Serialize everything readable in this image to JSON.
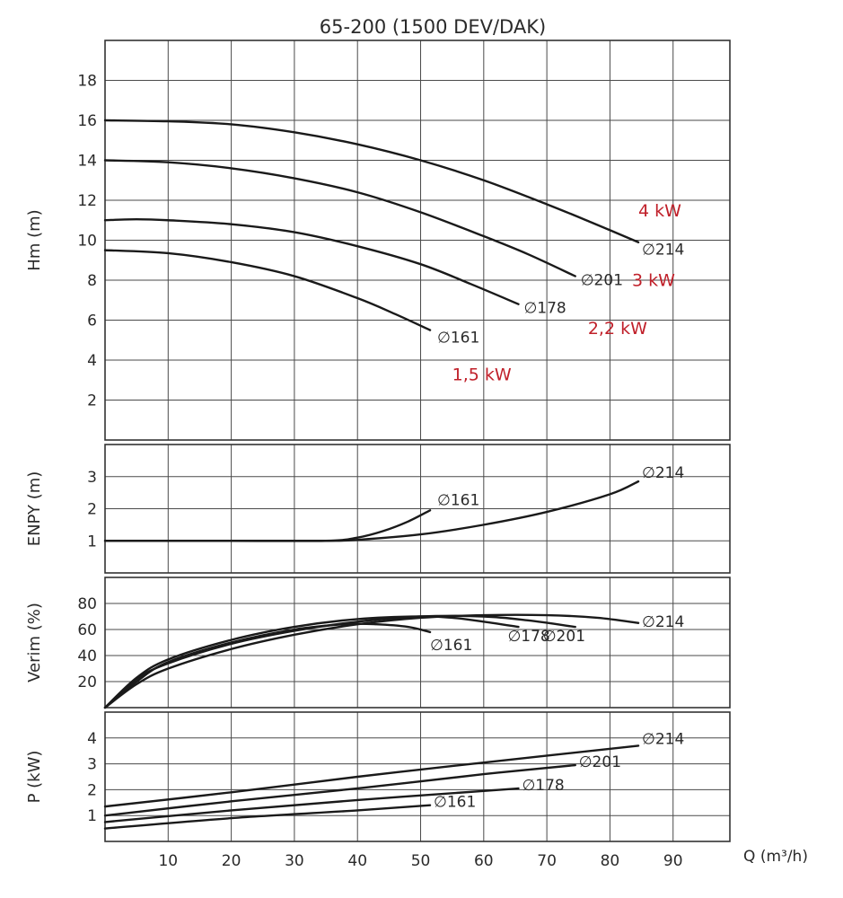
{
  "title": "65-200 (1500 DEV/DAK)",
  "xlabel": "Q (m³/h)",
  "diameter_symbol": "∅",
  "colors": {
    "curve": "#1a1a1a",
    "grid": "#4a4a4a",
    "power_label": "#c0202a"
  },
  "chart_data": [
    {
      "type": "line",
      "ylabel": "Hm (m)",
      "xlim": [
        0,
        99
      ],
      "ylim": [
        0,
        20
      ],
      "xticks": [
        10,
        20,
        30,
        40,
        50,
        60,
        70,
        80,
        90
      ],
      "yticks": [
        2,
        4,
        6,
        8,
        10,
        12,
        14,
        16,
        18
      ],
      "grid": true,
      "series": [
        {
          "name": "214",
          "x": [
            0,
            10,
            20,
            30,
            40,
            50,
            60,
            70,
            77,
            84.5
          ],
          "y": [
            16,
            15.95,
            15.8,
            15.4,
            14.8,
            14,
            13,
            11.8,
            10.9,
            9.9
          ]
        },
        {
          "name": "201",
          "x": [
            0,
            10,
            20,
            30,
            40,
            50,
            60,
            67,
            74.5
          ],
          "y": [
            14,
            13.9,
            13.6,
            13.1,
            12.4,
            11.4,
            10.2,
            9.3,
            8.2
          ]
        },
        {
          "name": "178",
          "x": [
            0,
            5,
            10,
            20,
            30,
            40,
            50,
            58,
            65.5
          ],
          "y": [
            11,
            11.05,
            11,
            10.8,
            10.4,
            9.7,
            8.8,
            7.8,
            6.8
          ]
        },
        {
          "name": "161",
          "x": [
            0,
            10,
            20,
            30,
            40,
            46,
            51.5
          ],
          "y": [
            9.5,
            9.35,
            8.9,
            8.2,
            7.1,
            6.3,
            5.5
          ]
        }
      ],
      "annotations": [
        "4 kW",
        "3 kW",
        "2,2 kW",
        "1,5 kW"
      ]
    },
    {
      "type": "line",
      "ylabel": "ENPY (m)",
      "xlim": [
        0,
        99
      ],
      "ylim": [
        0,
        4
      ],
      "yticks": [
        1,
        2,
        3
      ],
      "grid": true,
      "series": [
        {
          "name": "214",
          "x": [
            0,
            20,
            35,
            40,
            50,
            60,
            70,
            80,
            84.5
          ],
          "y": [
            1,
            1,
            1,
            1.03,
            1.2,
            1.5,
            1.9,
            2.45,
            2.85
          ]
        },
        {
          "name": "161",
          "x": [
            0,
            20,
            35,
            40,
            44,
            48,
            51.5
          ],
          "y": [
            1,
            1,
            1,
            1.1,
            1.3,
            1.6,
            1.95
          ]
        }
      ]
    },
    {
      "type": "line",
      "ylabel": "Verim (%)",
      "xlim": [
        0,
        99
      ],
      "ylim": [
        0,
        100
      ],
      "yticks": [
        20,
        40,
        60,
        80
      ],
      "grid": true,
      "series": [
        {
          "name": "161",
          "x": [
            0,
            5,
            10,
            20,
            30,
            38,
            43,
            48,
            51.5
          ],
          "y": [
            0,
            20,
            35,
            50,
            60,
            64,
            64,
            62,
            58
          ]
        },
        {
          "name": "178",
          "x": [
            0,
            5,
            10,
            20,
            30,
            40,
            50,
            55,
            60,
            65.5
          ],
          "y": [
            0,
            23,
            37,
            52,
            62,
            68,
            70,
            69,
            66,
            62
          ]
        },
        {
          "name": "201",
          "x": [
            0,
            5,
            10,
            20,
            30,
            40,
            50,
            60,
            67,
            74.5
          ],
          "y": [
            0,
            22,
            34,
            49,
            59,
            66,
            70,
            70,
            67,
            62
          ]
        },
        {
          "name": "214",
          "x": [
            0,
            5,
            10,
            20,
            30,
            40,
            50,
            60,
            70,
            78,
            84.5
          ],
          "y": [
            0,
            18,
            30,
            45,
            56,
            64,
            69,
            71,
            71,
            69,
            65
          ]
        }
      ]
    },
    {
      "type": "line",
      "ylabel": "P (kW)",
      "xlim": [
        0,
        99
      ],
      "ylim": [
        0,
        5
      ],
      "yticks": [
        1,
        2,
        3,
        4
      ],
      "grid": true,
      "series": [
        {
          "name": "214",
          "x": [
            0,
            20,
            40,
            60,
            84.5
          ],
          "y": [
            1.35,
            1.9,
            2.5,
            3.05,
            3.7
          ]
        },
        {
          "name": "201",
          "x": [
            0,
            20,
            40,
            60,
            74.5
          ],
          "y": [
            1.0,
            1.55,
            2.05,
            2.6,
            2.95
          ]
        },
        {
          "name": "178",
          "x": [
            0,
            20,
            40,
            60,
            65.5
          ],
          "y": [
            0.75,
            1.2,
            1.6,
            1.95,
            2.05
          ]
        },
        {
          "name": "161",
          "x": [
            0,
            20,
            40,
            51.5
          ],
          "y": [
            0.5,
            0.9,
            1.2,
            1.4
          ]
        }
      ]
    }
  ]
}
